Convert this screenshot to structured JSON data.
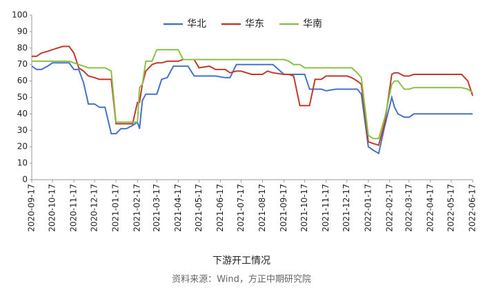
{
  "chart_data": {
    "type": "line",
    "title": "下游开工情况",
    "source": "资料来源：Wind，方正中期研究院",
    "x": [
      "2020-09-17",
      "2020-09-24",
      "2020-10-01",
      "2020-10-10",
      "2020-10-17",
      "2020-10-24",
      "2020-11-01",
      "2020-11-10",
      "2020-11-17",
      "2020-11-24",
      "2020-12-01",
      "2020-12-08",
      "2020-12-17",
      "2020-12-24",
      "2021-01-01",
      "2021-01-10",
      "2021-01-17",
      "2021-01-24",
      "2021-02-01",
      "2021-02-10",
      "2021-02-17",
      "2021-02-20",
      "2021-02-24",
      "2021-03-01",
      "2021-03-10",
      "2021-03-17",
      "2021-03-24",
      "2021-04-01",
      "2021-04-10",
      "2021-04-17",
      "2021-04-24",
      "2021-05-01",
      "2021-05-10",
      "2021-05-17",
      "2021-06-01",
      "2021-06-10",
      "2021-06-24",
      "2021-07-01",
      "2021-07-10",
      "2021-07-17",
      "2021-08-01",
      "2021-08-17",
      "2021-08-24",
      "2021-09-01",
      "2021-09-17",
      "2021-09-24",
      "2021-10-01",
      "2021-10-10",
      "2021-10-17",
      "2021-10-24",
      "2021-11-01",
      "2021-11-10",
      "2021-11-17",
      "2021-12-01",
      "2021-12-17",
      "2021-12-24",
      "2022-01-01",
      "2022-01-07",
      "2022-01-17",
      "2022-01-24",
      "2022-02-01",
      "2022-02-10",
      "2022-02-20",
      "2022-02-24",
      "2022-03-01",
      "2022-03-10",
      "2022-03-17",
      "2022-03-24",
      "2022-04-17",
      "2022-05-17",
      "2022-06-01",
      "2022-06-10",
      "2022-06-17"
    ],
    "series": [
      {
        "name": "华北",
        "color": "#4472c4",
        "values": [
          69,
          67,
          67,
          69,
          71,
          71,
          71,
          71,
          67,
          67,
          59,
          46,
          46,
          44,
          44,
          28,
          28,
          31,
          31,
          33,
          35,
          31,
          48,
          52,
          52,
          52,
          61,
          62,
          69,
          69,
          69,
          69,
          63,
          63,
          63,
          63,
          62,
          62,
          70,
          70,
          70,
          70,
          70,
          70,
          64,
          64,
          64,
          64,
          64,
          55,
          55,
          55,
          54,
          55,
          55,
          55,
          55,
          52,
          20,
          18,
          16,
          33,
          50,
          44,
          40,
          38,
          38,
          40,
          40,
          40,
          40,
          40,
          40
        ]
      },
      {
        "name": "华东",
        "color": "#c0392b",
        "values": [
          75,
          75,
          77,
          78,
          79,
          80,
          81,
          81,
          77,
          68,
          66,
          63,
          62,
          61,
          61,
          61,
          34,
          34,
          34,
          34,
          47,
          47,
          58,
          66,
          70,
          71,
          71,
          72,
          72,
          72,
          73,
          73,
          73,
          68,
          69,
          67,
          67,
          65,
          66,
          66,
          64,
          64,
          66,
          65,
          64,
          64,
          63,
          45,
          45,
          45,
          61,
          61,
          63,
          63,
          63,
          62,
          60,
          58,
          23,
          22,
          21,
          35,
          64,
          65,
          65,
          63,
          63,
          64,
          64,
          64,
          64,
          60,
          51
        ]
      },
      {
        "name": "华南",
        "color": "#8cbf4a",
        "values": [
          72,
          72,
          72,
          72,
          72,
          72,
          72,
          72,
          71,
          70,
          69,
          68,
          68,
          68,
          68,
          66,
          35,
          35,
          35,
          35,
          35,
          56,
          58,
          72,
          72,
          79,
          79,
          79,
          79,
          79,
          73,
          73,
          73,
          73,
          73,
          73,
          73,
          73,
          73,
          73,
          73,
          73,
          73,
          73,
          73,
          72,
          70,
          70,
          68,
          68,
          68,
          68,
          68,
          68,
          68,
          68,
          65,
          62,
          27,
          25,
          25,
          38,
          58,
          60,
          60,
          55,
          55,
          56,
          56,
          56,
          56,
          55,
          53
        ]
      }
    ],
    "xlim": [
      "2020-09-17",
      "2022-06-17"
    ],
    "xticks": [
      "2020-09-17",
      "2020-10-17",
      "2020-11-17",
      "2020-12-17",
      "2021-01-17",
      "2021-02-17",
      "2021-03-17",
      "2021-04-17",
      "2021-05-17",
      "2021-06-17",
      "2021-07-17",
      "2021-08-17",
      "2021-09-17",
      "2021-10-17",
      "2021-11-17",
      "2021-12-17",
      "2022-01-17",
      "2022-02-17",
      "2022-03-17",
      "2022-04-17",
      "2022-05-17",
      "2022-06-17"
    ],
    "ylim": [
      0,
      100
    ],
    "yticks": [
      0,
      10,
      20,
      30,
      40,
      50,
      60,
      70,
      80,
      90,
      100
    ],
    "grid": false
  }
}
